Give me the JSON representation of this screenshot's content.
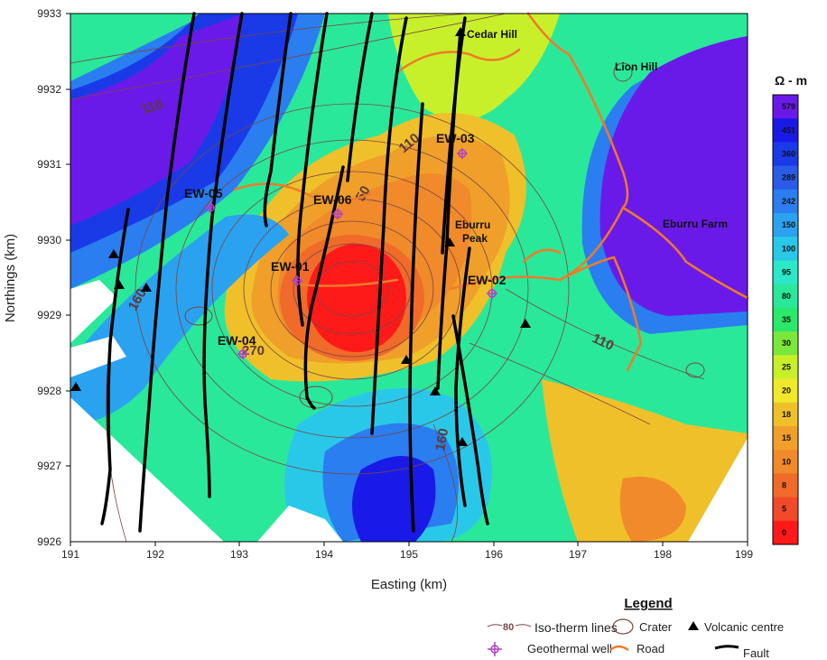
{
  "map": {
    "x_axis_label": "Easting (km)",
    "y_axis_label": "Northings (km)",
    "x_ticks": [
      "191",
      "192",
      "193",
      "194",
      "195",
      "196",
      "197",
      "198",
      "199"
    ],
    "y_ticks": [
      "9933",
      "9932",
      "9931",
      "9930",
      "9929",
      "9928",
      "9927",
      "9926"
    ],
    "places": [
      {
        "name": "Cedar Hill"
      },
      {
        "name": "Lion Hill"
      },
      {
        "name": "Eburru Farm"
      },
      {
        "name": "Eburru\nPeak"
      }
    ],
    "wells": [
      "EW-01",
      "EW-02",
      "EW-03",
      "EW-04",
      "EW-05",
      "EW-06"
    ],
    "isotherm_labels": [
      "110",
      "110",
      "110",
      "160",
      "160",
      "270",
      "50"
    ],
    "colors": {
      "resistivity_high": "#6a1ae8",
      "resistivity_low": "#ff1a1a",
      "road": "#f07a2a",
      "isotherm": "#7a4545",
      "well": "#b040c8",
      "fault": "#000000"
    }
  },
  "colorbar": {
    "unit": "Ω - m",
    "values": [
      "579",
      "451",
      "360",
      "289",
      "242",
      "150",
      "100",
      "95",
      "80",
      "35",
      "30",
      "25",
      "20",
      "18",
      "15",
      "10",
      "8",
      "5",
      "0"
    ],
    "colors": [
      "#6a1ae8",
      "#1a1ae8",
      "#1a3ae8",
      "#2a5ae8",
      "#2a7ef0",
      "#2aa2f0",
      "#2ac8e8",
      "#2ae8c8",
      "#2ae89a",
      "#2ae86a",
      "#7ae83a",
      "#c8f02a",
      "#f0e82a",
      "#f0c02a",
      "#f0a02a",
      "#f08a2a",
      "#f06a2a",
      "#f04a2a",
      "#ff1a1a"
    ]
  },
  "legend": {
    "title": "Legend",
    "iso_symbol": "80",
    "items": {
      "isotherm": "Iso-therm lines",
      "crater": "Crater",
      "volcanic": "Volcanic centre",
      "well": "Geothermal well",
      "road": "Road",
      "fault": "Fault"
    }
  }
}
